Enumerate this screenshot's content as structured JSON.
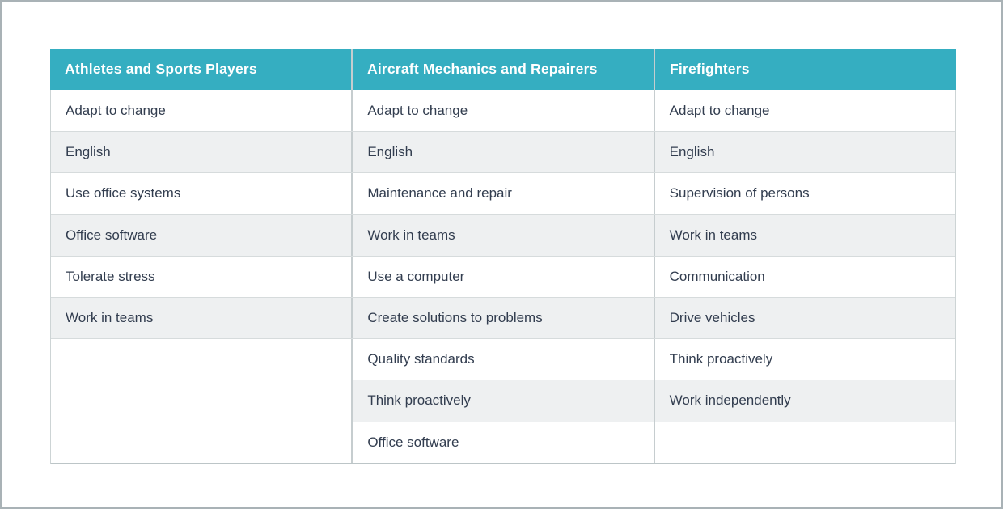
{
  "style": {
    "page_border": "#a9b2b6",
    "header_background": "#35aec1",
    "header_text_color": "#ffffff",
    "cell_text_color": "#323d4f",
    "stripe_color": "#eef0f1",
    "divider_color": "#c6cdcf",
    "row_line_color": "#d6dbdc"
  },
  "chart_data": {
    "type": "table",
    "title": "",
    "columns": [
      "Athletes and Sports Players",
      "Aircraft Mechanics and Repairers",
      "Firefighters"
    ],
    "rows": [
      [
        "Adapt to change",
        "Adapt to change",
        "Adapt to change"
      ],
      [
        "English",
        "English",
        "English"
      ],
      [
        "Use office systems",
        "Maintenance and repair",
        "Supervision of persons"
      ],
      [
        "Office software",
        "Work in teams",
        "Work in teams"
      ],
      [
        "Tolerate stress",
        "Use a computer",
        "Communication"
      ],
      [
        "Work in teams",
        "Create solutions to problems",
        "Drive vehicles"
      ],
      [
        "",
        "Quality standards",
        "Think proactively"
      ],
      [
        "",
        "Think proactively",
        "Work independently"
      ],
      [
        "",
        "Office software",
        ""
      ]
    ],
    "layout": {
      "legend": "none",
      "grid": "row and column separator lines",
      "striping": "even-numbered rows shaded gray; empty cells remain white",
      "header_style": "teal background with white bold text"
    }
  }
}
